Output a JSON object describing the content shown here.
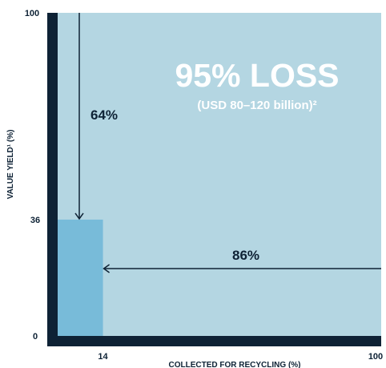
{
  "chart_data": {
    "type": "area",
    "x_axis": {
      "label": "COLLECTED FOR RECYCLING (%)",
      "range": [
        0,
        100
      ],
      "ticks": [
        "14",
        "100"
      ]
    },
    "y_axis": {
      "label": "VALUE YIELD¹ (%)",
      "range": [
        0,
        100
      ],
      "ticks": [
        "0",
        "36",
        "100"
      ]
    },
    "retained_block": {
      "x": [
        0,
        14
      ],
      "y": [
        0,
        36
      ]
    },
    "loss_area": {
      "x": [
        0,
        100
      ],
      "y": [
        0,
        100
      ]
    },
    "annotations": {
      "headline": "95% LOSS",
      "subheadline": "(USD 80–120 billion)²",
      "vertical_gap_label": "64%",
      "horizontal_gap_label": "86%"
    },
    "colors": {
      "frame": "#0e2235",
      "loss_area": "#b4d6e2",
      "retained_block": "#78bbd9",
      "annotation_text": "#ffffff",
      "ink": "#0e2235"
    }
  }
}
